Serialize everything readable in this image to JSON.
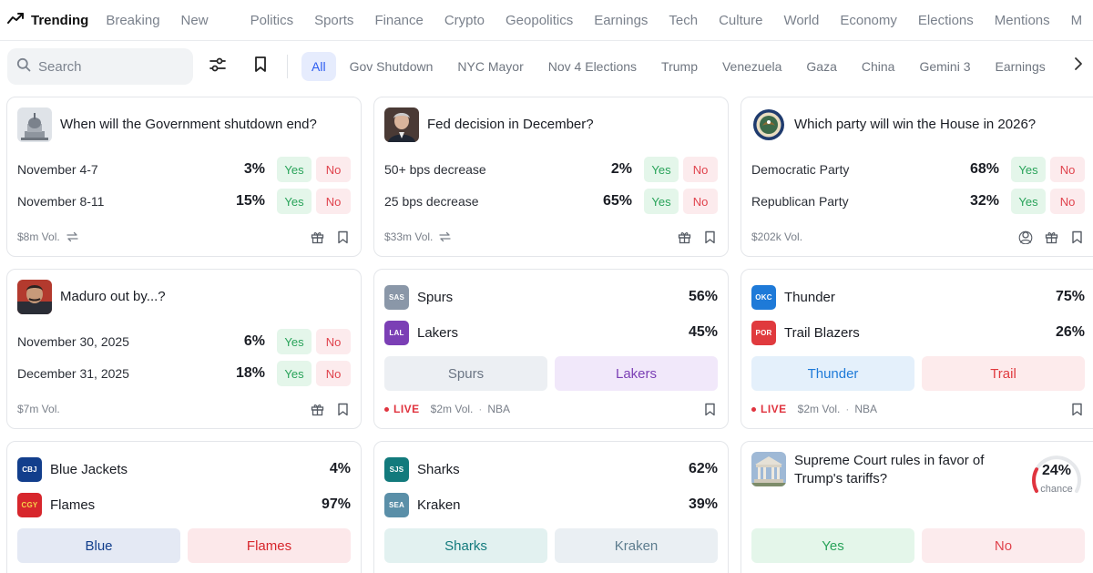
{
  "nav": {
    "trending": "Trending",
    "links": [
      "Breaking",
      "New",
      "Politics",
      "Sports",
      "Finance",
      "Crypto",
      "Geopolitics",
      "Earnings",
      "Tech",
      "Culture",
      "World",
      "Economy",
      "Elections",
      "Mentions",
      "M"
    ]
  },
  "filters": {
    "search_placeholder": "Search",
    "chips": [
      "All",
      "Gov Shutdown",
      "NYC Mayor",
      "Nov 4 Elections",
      "Trump",
      "Venezuela",
      "Gaza",
      "China",
      "Gemini 3",
      "Earnings"
    ]
  },
  "markets": {
    "shutdown": {
      "title": "When will the Government shutdown end?",
      "outcomes": [
        {
          "label": "November 4-7",
          "pct": "3%"
        },
        {
          "label": "November 8-11",
          "pct": "15%"
        }
      ],
      "volume": "$8m Vol."
    },
    "fed": {
      "title": "Fed decision in December?",
      "outcomes": [
        {
          "label": "50+ bps decrease",
          "pct": "2%"
        },
        {
          "label": "25 bps decrease",
          "pct": "65%"
        }
      ],
      "volume": "$33m Vol."
    },
    "house": {
      "title": "Which party will win the House in 2026?",
      "outcomes": [
        {
          "label": "Democratic Party",
          "pct": "68%"
        },
        {
          "label": "Republican Party",
          "pct": "32%"
        }
      ],
      "volume": "$202k Vol."
    },
    "maduro": {
      "title": "Maduro out by...?",
      "outcomes": [
        {
          "label": "November 30, 2025",
          "pct": "6%"
        },
        {
          "label": "December 31, 2025",
          "pct": "18%"
        }
      ],
      "volume": "$7m Vol."
    },
    "spurs_lakers": {
      "teams": [
        {
          "abbr": "SAS",
          "name": "Spurs",
          "pct": "56%",
          "btn": "Spurs"
        },
        {
          "abbr": "LAL",
          "name": "Lakers",
          "pct": "45%",
          "btn": "Lakers"
        }
      ],
      "live": "LIVE",
      "volume": "$2m Vol.",
      "league": "NBA"
    },
    "thunder_blazers": {
      "teams": [
        {
          "abbr": "OKC",
          "name": "Thunder",
          "pct": "75%",
          "btn": "Thunder"
        },
        {
          "abbr": "POR",
          "name": "Trail Blazers",
          "pct": "26%",
          "btn": "Trail"
        }
      ],
      "live": "LIVE",
      "volume": "$2m Vol.",
      "league": "NBA"
    },
    "jackets_flames": {
      "teams": [
        {
          "abbr": "CBJ",
          "name": "Blue Jackets",
          "pct": "4%",
          "btn": "Blue"
        },
        {
          "abbr": "CGY",
          "name": "Flames",
          "pct": "97%",
          "btn": "Flames"
        }
      ]
    },
    "sharks_kraken": {
      "teams": [
        {
          "abbr": "SJS",
          "name": "Sharks",
          "pct": "62%",
          "btn": "Sharks"
        },
        {
          "abbr": "SEA",
          "name": "Kraken",
          "pct": "39%",
          "btn": "Kraken"
        }
      ]
    },
    "tariffs": {
      "title_line1": "Supreme Court rules in favor of",
      "title_line2": "Trump's tariffs?",
      "chance": "24%",
      "chance_fraction": 0.24,
      "chance_label": "chance",
      "yes": "Yes",
      "no": "No"
    }
  },
  "buttons": {
    "yes": "Yes",
    "no": "No"
  },
  "colors": {
    "accent": "#2c5cf0",
    "yes_bg": "#e4f6ea",
    "yes_text": "#29a35a",
    "no_bg": "#fcebed",
    "no_text": "#e0434d",
    "live": "#e0343f",
    "spurs_logo": "#8a97a8",
    "lakers_logo": "#7b3fb5",
    "thunder_logo": "#1e7ad8",
    "blazers_logo": "#e03a3e",
    "jackets_logo": "#123e8c",
    "flames_logo": "#d7262c",
    "sharks_logo": "#127a7c",
    "kraken_logo": "#5a8fa8"
  }
}
